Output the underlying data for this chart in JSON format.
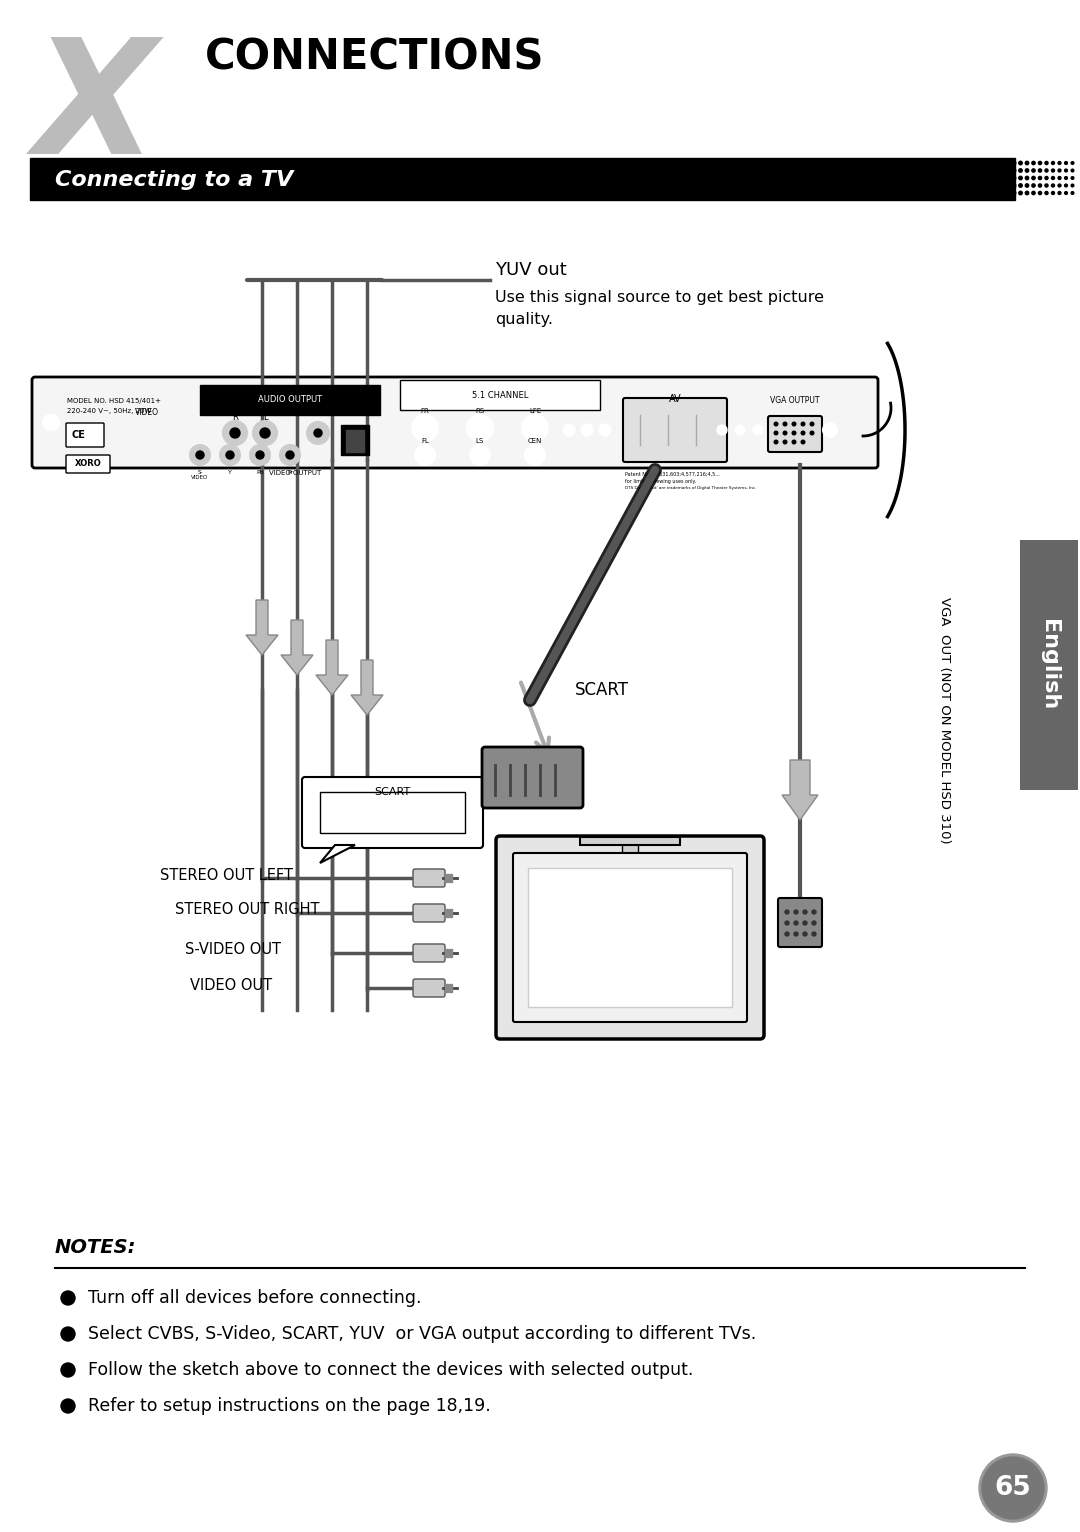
{
  "title": "CONNECTIONS",
  "subtitle": "Connecting to a TV",
  "page_number": "65",
  "background_color": "#ffffff",
  "yuv_label": "YUV out",
  "yuv_text": "Use this signal source to get best picture\nquality.",
  "scart_label": "SCART",
  "scart_box_label": "SCART",
  "labels_left": [
    "STEREO OUT LEFT",
    "STEREO OUT RIGHT",
    "S-VIDEO OUT",
    "VIDEO OUT"
  ],
  "vga_label": "VGA  OUT (NOT ON MODEL HSD 310)",
  "notes_title": "NOTES:",
  "notes": [
    "Turn off all devices before connecting.",
    "Select CVBS, S-Video, SCART, YUV  or VGA output according to different TVs.",
    "Follow the sketch above to connect the devices with selected output.",
    "Refer to setup instructions on the page 18,19."
  ]
}
